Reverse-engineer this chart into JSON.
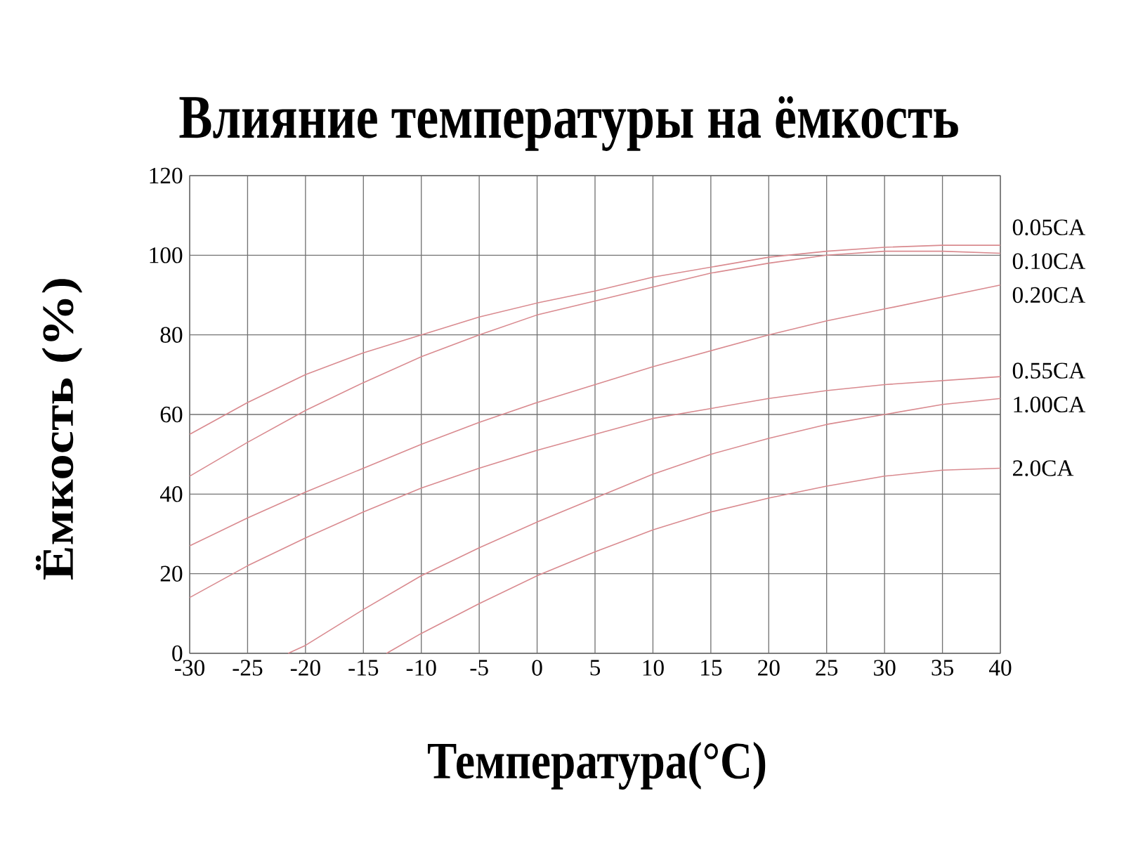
{
  "chart_data": {
    "type": "line",
    "title": "Влияние температуры на ёмкость",
    "xlabel": "Температура(°C)",
    "ylabel": "Ёмкость (%)",
    "xlim": [
      -30,
      40
    ],
    "ylim": [
      0,
      120
    ],
    "xticks": [
      -30,
      -25,
      -20,
      -15,
      -10,
      -5,
      0,
      5,
      10,
      15,
      20,
      25,
      30,
      35,
      40
    ],
    "yticks": [
      0,
      20,
      40,
      60,
      80,
      100,
      120
    ],
    "grid": true,
    "legend": false,
    "marker": "none",
    "line_style": "solid",
    "series": [
      {
        "name": "0.05CA",
        "color": "#d98a8f",
        "x": [
          -30,
          -25,
          -20,
          -15,
          -10,
          -5,
          0,
          5,
          10,
          15,
          20,
          25,
          30,
          35,
          40
        ],
        "values": [
          55,
          63,
          70,
          75.5,
          80,
          84.5,
          88,
          91,
          94.5,
          97,
          99.5,
          101,
          102,
          102.5,
          102.5
        ]
      },
      {
        "name": "0.10CA",
        "color": "#d98a8f",
        "x": [
          -30,
          -25,
          -20,
          -15,
          -10,
          -5,
          0,
          5,
          10,
          15,
          20,
          25,
          30,
          35,
          40
        ],
        "values": [
          44.5,
          53,
          61,
          68,
          74.5,
          80,
          85,
          88.5,
          92,
          95.5,
          98,
          100,
          101,
          101,
          100.5
        ]
      },
      {
        "name": "0.20CA",
        "color": "#d98a8f",
        "x": [
          -30,
          -25,
          -20,
          -15,
          -10,
          -5,
          0,
          5,
          10,
          15,
          20,
          25,
          30,
          35,
          40
        ],
        "values": [
          27,
          34,
          40.5,
          46.5,
          52.5,
          58,
          63,
          67.5,
          72,
          76,
          80,
          83.5,
          86.5,
          89.5,
          92.5
        ]
      },
      {
        "name": "0.55CA",
        "color": "#d98a8f",
        "x": [
          -30,
          -25,
          -20,
          -15,
          -10,
          -5,
          0,
          5,
          10,
          15,
          20,
          25,
          30,
          35,
          40
        ],
        "values": [
          14,
          22,
          29,
          35.5,
          41.5,
          46.5,
          51,
          55,
          59,
          61.5,
          64,
          66,
          67.5,
          68.5,
          69.5
        ]
      },
      {
        "name": "1.00CA",
        "color": "#d98a8f",
        "x": [
          -21.5,
          -20,
          -15,
          -10,
          -5,
          0,
          5,
          10,
          15,
          20,
          25,
          30,
          35,
          40
        ],
        "values": [
          0,
          2,
          11,
          19.5,
          26.5,
          33,
          39,
          45,
          50,
          54,
          57.5,
          60,
          62.5,
          64
        ]
      },
      {
        "name": "2.0CA",
        "color": "#d98a8f",
        "x": [
          -13,
          -10,
          -5,
          0,
          5,
          10,
          15,
          20,
          25,
          30,
          35,
          40
        ],
        "values": [
          0,
          5,
          12.5,
          19.5,
          25.5,
          31,
          35.5,
          39,
          42,
          44.5,
          46,
          46.5
        ]
      }
    ]
  }
}
